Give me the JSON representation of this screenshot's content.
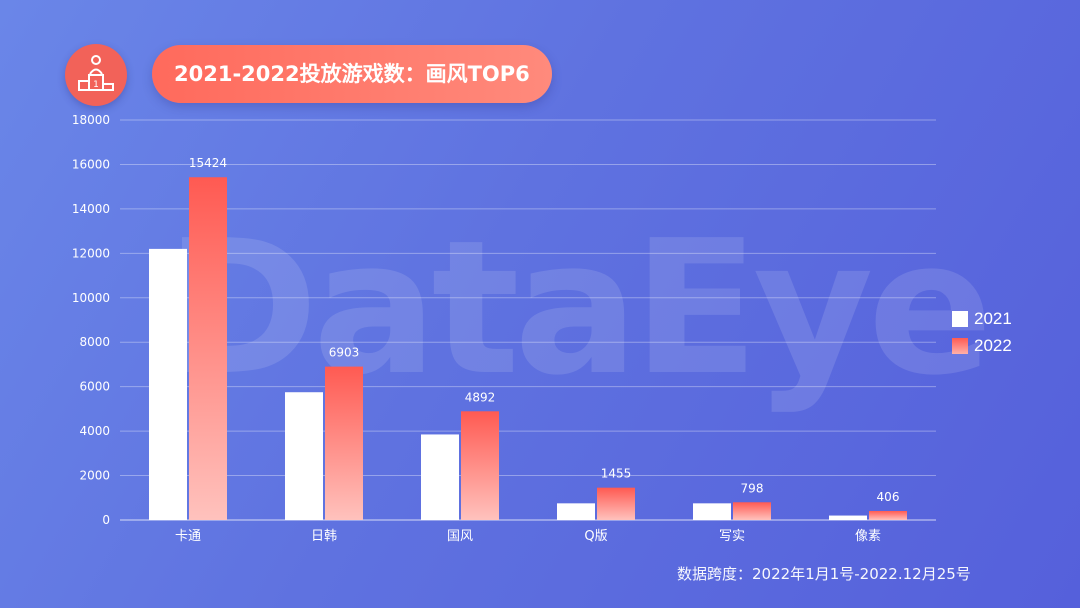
{
  "title": "2021-2022投放游戏数：画风TOP6",
  "watermark": "DataEye",
  "footnote": "数据跨度：2022年1月1号-2022.12月25号",
  "icon": "podium-icon",
  "colors": {
    "series_2021": "#ffffff",
    "series_2022_top": "#ff5a52",
    "series_2022_bottom": "#ffc2bd",
    "title_pill": "#ff6a5c"
  },
  "chart_data": {
    "type": "bar",
    "categories": [
      "卡通",
      "日韩",
      "国风",
      "Q版",
      "写实",
      "像素"
    ],
    "series": [
      {
        "name": "2021",
        "values": [
          12200,
          5750,
          3850,
          750,
          750,
          200
        ],
        "labels_shown": false
      },
      {
        "name": "2022",
        "values": [
          15424,
          6903,
          4892,
          1455,
          798,
          406
        ],
        "labels_shown": true
      }
    ],
    "ylim": [
      0,
      18000
    ],
    "yticks": [
      "0",
      "2000",
      "4000",
      "6000",
      "8000",
      "10000",
      "12000",
      "14000",
      "16000",
      "18000"
    ],
    "grid": true,
    "legend_position": "right",
    "xlabel": "",
    "ylabel": ""
  }
}
